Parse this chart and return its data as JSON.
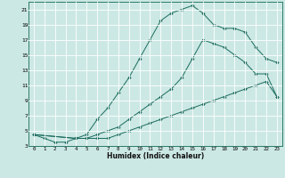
{
  "xlabel": "Humidex (Indice chaleur)",
  "background_color": "#cce8e4",
  "line_color": "#1a6b5e",
  "grid_color": "#ffffff",
  "xlim": [
    -0.5,
    23.5
  ],
  "ylim": [
    3,
    22
  ],
  "xticks": [
    0,
    1,
    2,
    3,
    4,
    5,
    6,
    7,
    8,
    9,
    10,
    11,
    12,
    13,
    14,
    15,
    16,
    17,
    18,
    19,
    20,
    21,
    22,
    23
  ],
  "yticks": [
    3,
    5,
    7,
    9,
    11,
    13,
    15,
    17,
    19,
    21
  ],
  "line1_x": [
    0,
    1,
    2,
    3,
    4,
    5,
    6,
    7,
    8,
    9,
    10,
    11,
    12,
    13,
    14,
    15,
    16,
    17,
    18,
    19,
    20,
    21,
    22,
    23
  ],
  "line1_y": [
    4.5,
    4.0,
    3.5,
    3.5,
    4.0,
    4.5,
    6.5,
    8.0,
    10.0,
    12.0,
    14.5,
    17.0,
    19.5,
    20.5,
    21.0,
    21.5,
    20.5,
    19.0,
    18.5,
    18.5,
    18.0,
    16.0,
    14.5,
    14.0
  ],
  "line2_x": [
    0,
    4,
    5,
    6,
    7,
    8,
    9,
    10,
    11,
    12,
    13,
    14,
    15,
    16,
    17,
    18,
    19,
    20,
    21,
    22,
    23
  ],
  "line2_y": [
    4.5,
    4.0,
    4.0,
    4.0,
    4.0,
    4.5,
    5.0,
    5.5,
    6.0,
    6.5,
    7.0,
    7.5,
    8.0,
    8.5,
    9.0,
    9.5,
    10.0,
    10.5,
    11.0,
    11.5,
    9.5
  ],
  "line3_x": [
    0,
    4,
    5,
    6,
    7,
    8,
    9,
    10,
    11,
    12,
    13,
    14,
    15,
    16,
    17,
    18,
    19,
    20,
    21,
    22,
    23
  ],
  "line3_y": [
    4.5,
    4.0,
    4.0,
    4.5,
    5.0,
    5.5,
    6.5,
    7.5,
    8.5,
    9.5,
    10.5,
    12.0,
    14.5,
    17.0,
    16.5,
    16.0,
    15.0,
    14.0,
    12.5,
    12.5,
    9.5
  ]
}
